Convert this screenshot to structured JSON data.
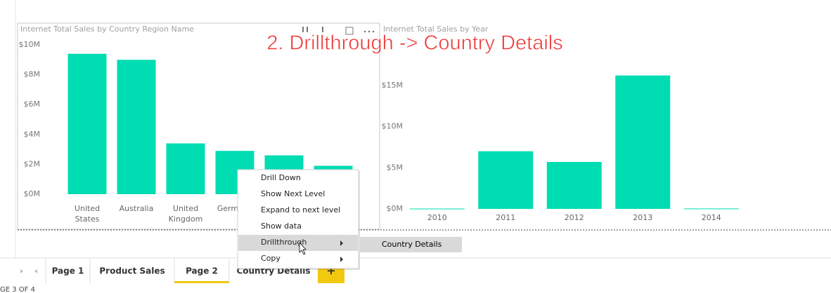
{
  "chart_data": [
    {
      "type": "bar",
      "title": "Internet Total Sales by Country Region Name",
      "categories": [
        "United States",
        "Australia",
        "United Kingdom",
        "Germany",
        null,
        null
      ],
      "values": [
        9.4,
        9.0,
        3.4,
        2.9,
        2.6,
        1.9
      ],
      "color": "#01ddb3",
      "ylim": [
        0,
        10
      ],
      "yticks": [
        {
          "value": 0,
          "label": "$0M"
        },
        {
          "value": 2,
          "label": "$2M"
        },
        {
          "value": 4,
          "label": "$4M"
        },
        {
          "value": 6,
          "label": "$6M"
        },
        {
          "value": 8,
          "label": "$8M"
        },
        {
          "value": 10,
          "label": "$10M"
        }
      ],
      "grid": false
    },
    {
      "type": "bar",
      "title": "Internet Total Sales by Year",
      "categories": [
        "2010",
        "2011",
        "2012",
        "2013",
        "2014"
      ],
      "values": [
        0.04,
        7.0,
        5.7,
        16.2,
        0.05
      ],
      "color": "#01ddb3",
      "ylim": [
        0,
        20
      ],
      "yticks": [
        {
          "value": 0,
          "label": "$0M"
        },
        {
          "value": 5,
          "label": "$5M"
        },
        {
          "value": 10,
          "label": "$10M"
        },
        {
          "value": 15,
          "label": "$15M"
        }
      ],
      "grid": false
    }
  ],
  "annotation": "2. Drillthrough -> Country Details",
  "context_menu": {
    "items": [
      "Drill Down",
      "Show Next Level",
      "Expand to next level",
      "Show data",
      "Drillthrough",
      "Copy"
    ]
  },
  "submenu": {
    "items": [
      "Country Details"
    ]
  },
  "tabs": [
    "Page 1",
    "Product Sales",
    "Page 2",
    "Country Details"
  ],
  "add_tab": "+",
  "status": "GE 3 OF 4"
}
